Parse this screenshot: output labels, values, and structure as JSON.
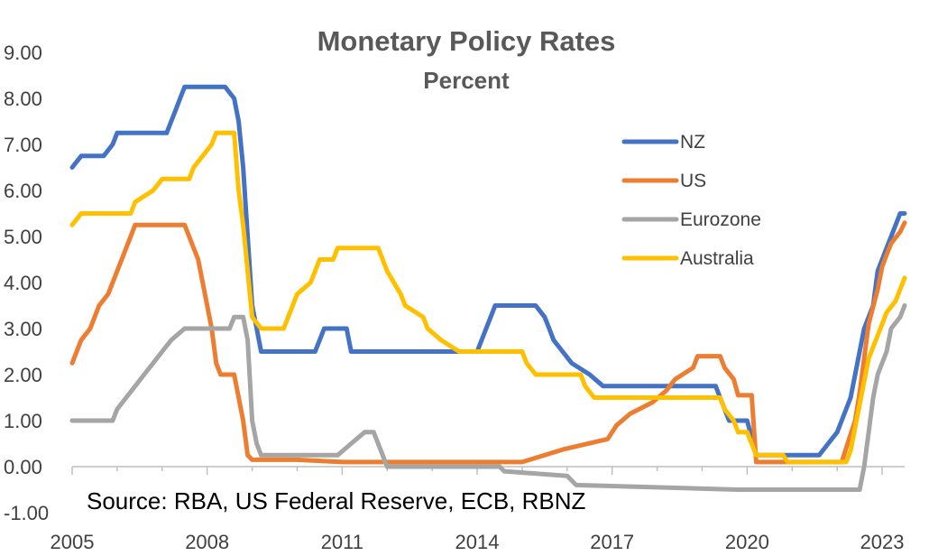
{
  "chart_data": {
    "type": "line",
    "title": "Monetary Policy Rates",
    "subtitle": "Percent",
    "source": "Source: RBA, US Federal Reserve, ECB, RBNZ",
    "xlabel": "",
    "ylabel": "",
    "xlim": [
      2005,
      2023.5
    ],
    "ylim": [
      -1,
      9
    ],
    "x_ticks": [
      2005,
      2008,
      2011,
      2014,
      2017,
      2020,
      2023
    ],
    "x_tick_labels": [
      "2005",
      "2008",
      "2011",
      "2014",
      "2017",
      "2020",
      "2023"
    ],
    "y_ticks": [
      -1,
      0,
      1,
      2,
      3,
      4,
      5,
      6,
      7,
      8,
      9
    ],
    "y_tick_labels": [
      "-1.00",
      "0.00",
      "1.00",
      "2.00",
      "3.00",
      "4.00",
      "5.00",
      "6.00",
      "7.00",
      "8.00",
      "9.00"
    ],
    "grid": false,
    "legend_position": "right",
    "series": [
      {
        "name": "NZ",
        "color": "#4472C4",
        "points": [
          [
            2005.0,
            6.5
          ],
          [
            2005.2,
            6.75
          ],
          [
            2005.7,
            6.75
          ],
          [
            2005.9,
            7.0
          ],
          [
            2006.0,
            7.25
          ],
          [
            2007.1,
            7.25
          ],
          [
            2007.2,
            7.5
          ],
          [
            2007.3,
            7.75
          ],
          [
            2007.4,
            8.0
          ],
          [
            2007.5,
            8.25
          ],
          [
            2008.4,
            8.25
          ],
          [
            2008.6,
            8.0
          ],
          [
            2008.7,
            7.5
          ],
          [
            2008.8,
            6.5
          ],
          [
            2008.9,
            5.0
          ],
          [
            2009.0,
            3.5
          ],
          [
            2009.1,
            3.0
          ],
          [
            2009.2,
            2.5
          ],
          [
            2010.4,
            2.5
          ],
          [
            2010.5,
            2.75
          ],
          [
            2010.6,
            3.0
          ],
          [
            2011.1,
            3.0
          ],
          [
            2011.2,
            2.5
          ],
          [
            2014.0,
            2.5
          ],
          [
            2014.1,
            2.75
          ],
          [
            2014.2,
            3.0
          ],
          [
            2014.3,
            3.25
          ],
          [
            2014.4,
            3.5
          ],
          [
            2015.3,
            3.5
          ],
          [
            2015.5,
            3.25
          ],
          [
            2015.6,
            3.0
          ],
          [
            2015.7,
            2.75
          ],
          [
            2015.9,
            2.5
          ],
          [
            2016.1,
            2.25
          ],
          [
            2016.5,
            2.0
          ],
          [
            2016.8,
            1.75
          ],
          [
            2019.3,
            1.75
          ],
          [
            2019.4,
            1.5
          ],
          [
            2019.6,
            1.0
          ],
          [
            2020.0,
            1.0
          ],
          [
            2020.2,
            0.25
          ],
          [
            2021.6,
            0.25
          ],
          [
            2021.8,
            0.5
          ],
          [
            2022.0,
            0.75
          ],
          [
            2022.1,
            1.0
          ],
          [
            2022.3,
            1.5
          ],
          [
            2022.4,
            2.0
          ],
          [
            2022.5,
            2.5
          ],
          [
            2022.6,
            3.0
          ],
          [
            2022.8,
            3.5
          ],
          [
            2022.9,
            4.25
          ],
          [
            2023.1,
            4.75
          ],
          [
            2023.3,
            5.25
          ],
          [
            2023.4,
            5.5
          ],
          [
            2023.5,
            5.5
          ]
        ]
      },
      {
        "name": "US",
        "color": "#ED7D31",
        "points": [
          [
            2005.0,
            2.25
          ],
          [
            2005.2,
            2.75
          ],
          [
            2005.4,
            3.0
          ],
          [
            2005.6,
            3.5
          ],
          [
            2005.8,
            3.75
          ],
          [
            2006.0,
            4.25
          ],
          [
            2006.2,
            4.75
          ],
          [
            2006.4,
            5.25
          ],
          [
            2007.5,
            5.25
          ],
          [
            2007.6,
            5.0
          ],
          [
            2007.8,
            4.5
          ],
          [
            2008.0,
            3.5
          ],
          [
            2008.1,
            3.0
          ],
          [
            2008.2,
            2.25
          ],
          [
            2008.3,
            2.0
          ],
          [
            2008.6,
            2.0
          ],
          [
            2008.7,
            1.5
          ],
          [
            2008.8,
            1.0
          ],
          [
            2008.9,
            0.25
          ],
          [
            2009.0,
            0.15
          ],
          [
            2009.5,
            0.15
          ],
          [
            2010.0,
            0.15
          ],
          [
            2011.0,
            0.1
          ],
          [
            2013.0,
            0.1
          ],
          [
            2015.0,
            0.1
          ],
          [
            2015.9,
            0.37
          ],
          [
            2016.9,
            0.6
          ],
          [
            2017.1,
            0.9
          ],
          [
            2017.4,
            1.15
          ],
          [
            2017.9,
            1.4
          ],
          [
            2018.2,
            1.65
          ],
          [
            2018.4,
            1.9
          ],
          [
            2018.8,
            2.15
          ],
          [
            2018.9,
            2.4
          ],
          [
            2019.4,
            2.4
          ],
          [
            2019.5,
            2.15
          ],
          [
            2019.7,
            1.9
          ],
          [
            2019.8,
            1.55
          ],
          [
            2020.1,
            1.55
          ],
          [
            2020.2,
            0.1
          ],
          [
            2022.1,
            0.1
          ],
          [
            2022.2,
            0.4
          ],
          [
            2022.4,
            1.0
          ],
          [
            2022.5,
            1.6
          ],
          [
            2022.6,
            2.35
          ],
          [
            2022.7,
            3.1
          ],
          [
            2022.9,
            3.85
          ],
          [
            2023.0,
            4.35
          ],
          [
            2023.1,
            4.6
          ],
          [
            2023.2,
            4.85
          ],
          [
            2023.4,
            5.1
          ],
          [
            2023.5,
            5.3
          ]
        ]
      },
      {
        "name": "Eurozone",
        "color": "#A5A5A5",
        "points": [
          [
            2005.0,
            1.0
          ],
          [
            2005.9,
            1.0
          ],
          [
            2006.0,
            1.25
          ],
          [
            2006.2,
            1.5
          ],
          [
            2006.4,
            1.75
          ],
          [
            2006.6,
            2.0
          ],
          [
            2006.8,
            2.25
          ],
          [
            2007.0,
            2.5
          ],
          [
            2007.2,
            2.75
          ],
          [
            2007.5,
            3.0
          ],
          [
            2008.5,
            3.0
          ],
          [
            2008.6,
            3.25
          ],
          [
            2008.8,
            3.25
          ],
          [
            2008.9,
            2.75
          ],
          [
            2009.0,
            1.0
          ],
          [
            2009.1,
            0.5
          ],
          [
            2009.2,
            0.25
          ],
          [
            2010.9,
            0.25
          ],
          [
            2011.2,
            0.5
          ],
          [
            2011.5,
            0.75
          ],
          [
            2011.7,
            0.75
          ],
          [
            2011.9,
            0.25
          ],
          [
            2012.0,
            0.0
          ],
          [
            2013.0,
            0.0
          ],
          [
            2014.5,
            0.0
          ],
          [
            2014.6,
            -0.1
          ],
          [
            2016.0,
            -0.2
          ],
          [
            2016.2,
            -0.4
          ],
          [
            2019.8,
            -0.5
          ],
          [
            2022.5,
            -0.5
          ],
          [
            2022.6,
            0.0
          ],
          [
            2022.7,
            0.75
          ],
          [
            2022.8,
            1.5
          ],
          [
            2022.9,
            2.0
          ],
          [
            2023.1,
            2.5
          ],
          [
            2023.2,
            3.0
          ],
          [
            2023.4,
            3.25
          ],
          [
            2023.5,
            3.5
          ]
        ]
      },
      {
        "name": "Australia",
        "color": "#FFC000",
        "points": [
          [
            2005.0,
            5.25
          ],
          [
            2005.2,
            5.5
          ],
          [
            2006.3,
            5.5
          ],
          [
            2006.4,
            5.75
          ],
          [
            2006.8,
            6.0
          ],
          [
            2007.0,
            6.25
          ],
          [
            2007.6,
            6.25
          ],
          [
            2007.7,
            6.5
          ],
          [
            2007.9,
            6.75
          ],
          [
            2008.1,
            7.0
          ],
          [
            2008.2,
            7.25
          ],
          [
            2008.6,
            7.25
          ],
          [
            2008.7,
            6.0
          ],
          [
            2008.8,
            5.25
          ],
          [
            2008.9,
            4.25
          ],
          [
            2009.0,
            3.25
          ],
          [
            2009.2,
            3.0
          ],
          [
            2009.7,
            3.0
          ],
          [
            2009.8,
            3.25
          ],
          [
            2009.9,
            3.5
          ],
          [
            2010.0,
            3.75
          ],
          [
            2010.3,
            4.0
          ],
          [
            2010.4,
            4.25
          ],
          [
            2010.5,
            4.5
          ],
          [
            2010.8,
            4.5
          ],
          [
            2010.9,
            4.75
          ],
          [
            2011.8,
            4.75
          ],
          [
            2011.9,
            4.5
          ],
          [
            2012.0,
            4.25
          ],
          [
            2012.3,
            3.75
          ],
          [
            2012.4,
            3.5
          ],
          [
            2012.8,
            3.25
          ],
          [
            2012.9,
            3.0
          ],
          [
            2013.2,
            2.75
          ],
          [
            2013.6,
            2.5
          ],
          [
            2015.0,
            2.5
          ],
          [
            2015.1,
            2.25
          ],
          [
            2015.3,
            2.0
          ],
          [
            2016.3,
            2.0
          ],
          [
            2016.4,
            1.75
          ],
          [
            2016.6,
            1.5
          ],
          [
            2019.4,
            1.5
          ],
          [
            2019.5,
            1.25
          ],
          [
            2019.7,
            1.0
          ],
          [
            2019.8,
            0.75
          ],
          [
            2020.0,
            0.75
          ],
          [
            2020.1,
            0.5
          ],
          [
            2020.2,
            0.25
          ],
          [
            2020.8,
            0.25
          ],
          [
            2020.9,
            0.1
          ],
          [
            2022.2,
            0.1
          ],
          [
            2022.3,
            0.35
          ],
          [
            2022.4,
            0.85
          ],
          [
            2022.5,
            1.35
          ],
          [
            2022.6,
            1.85
          ],
          [
            2022.7,
            2.35
          ],
          [
            2022.8,
            2.6
          ],
          [
            2022.9,
            2.85
          ],
          [
            2023.0,
            3.1
          ],
          [
            2023.1,
            3.35
          ],
          [
            2023.3,
            3.6
          ],
          [
            2023.4,
            3.85
          ],
          [
            2023.5,
            4.1
          ]
        ]
      }
    ]
  }
}
